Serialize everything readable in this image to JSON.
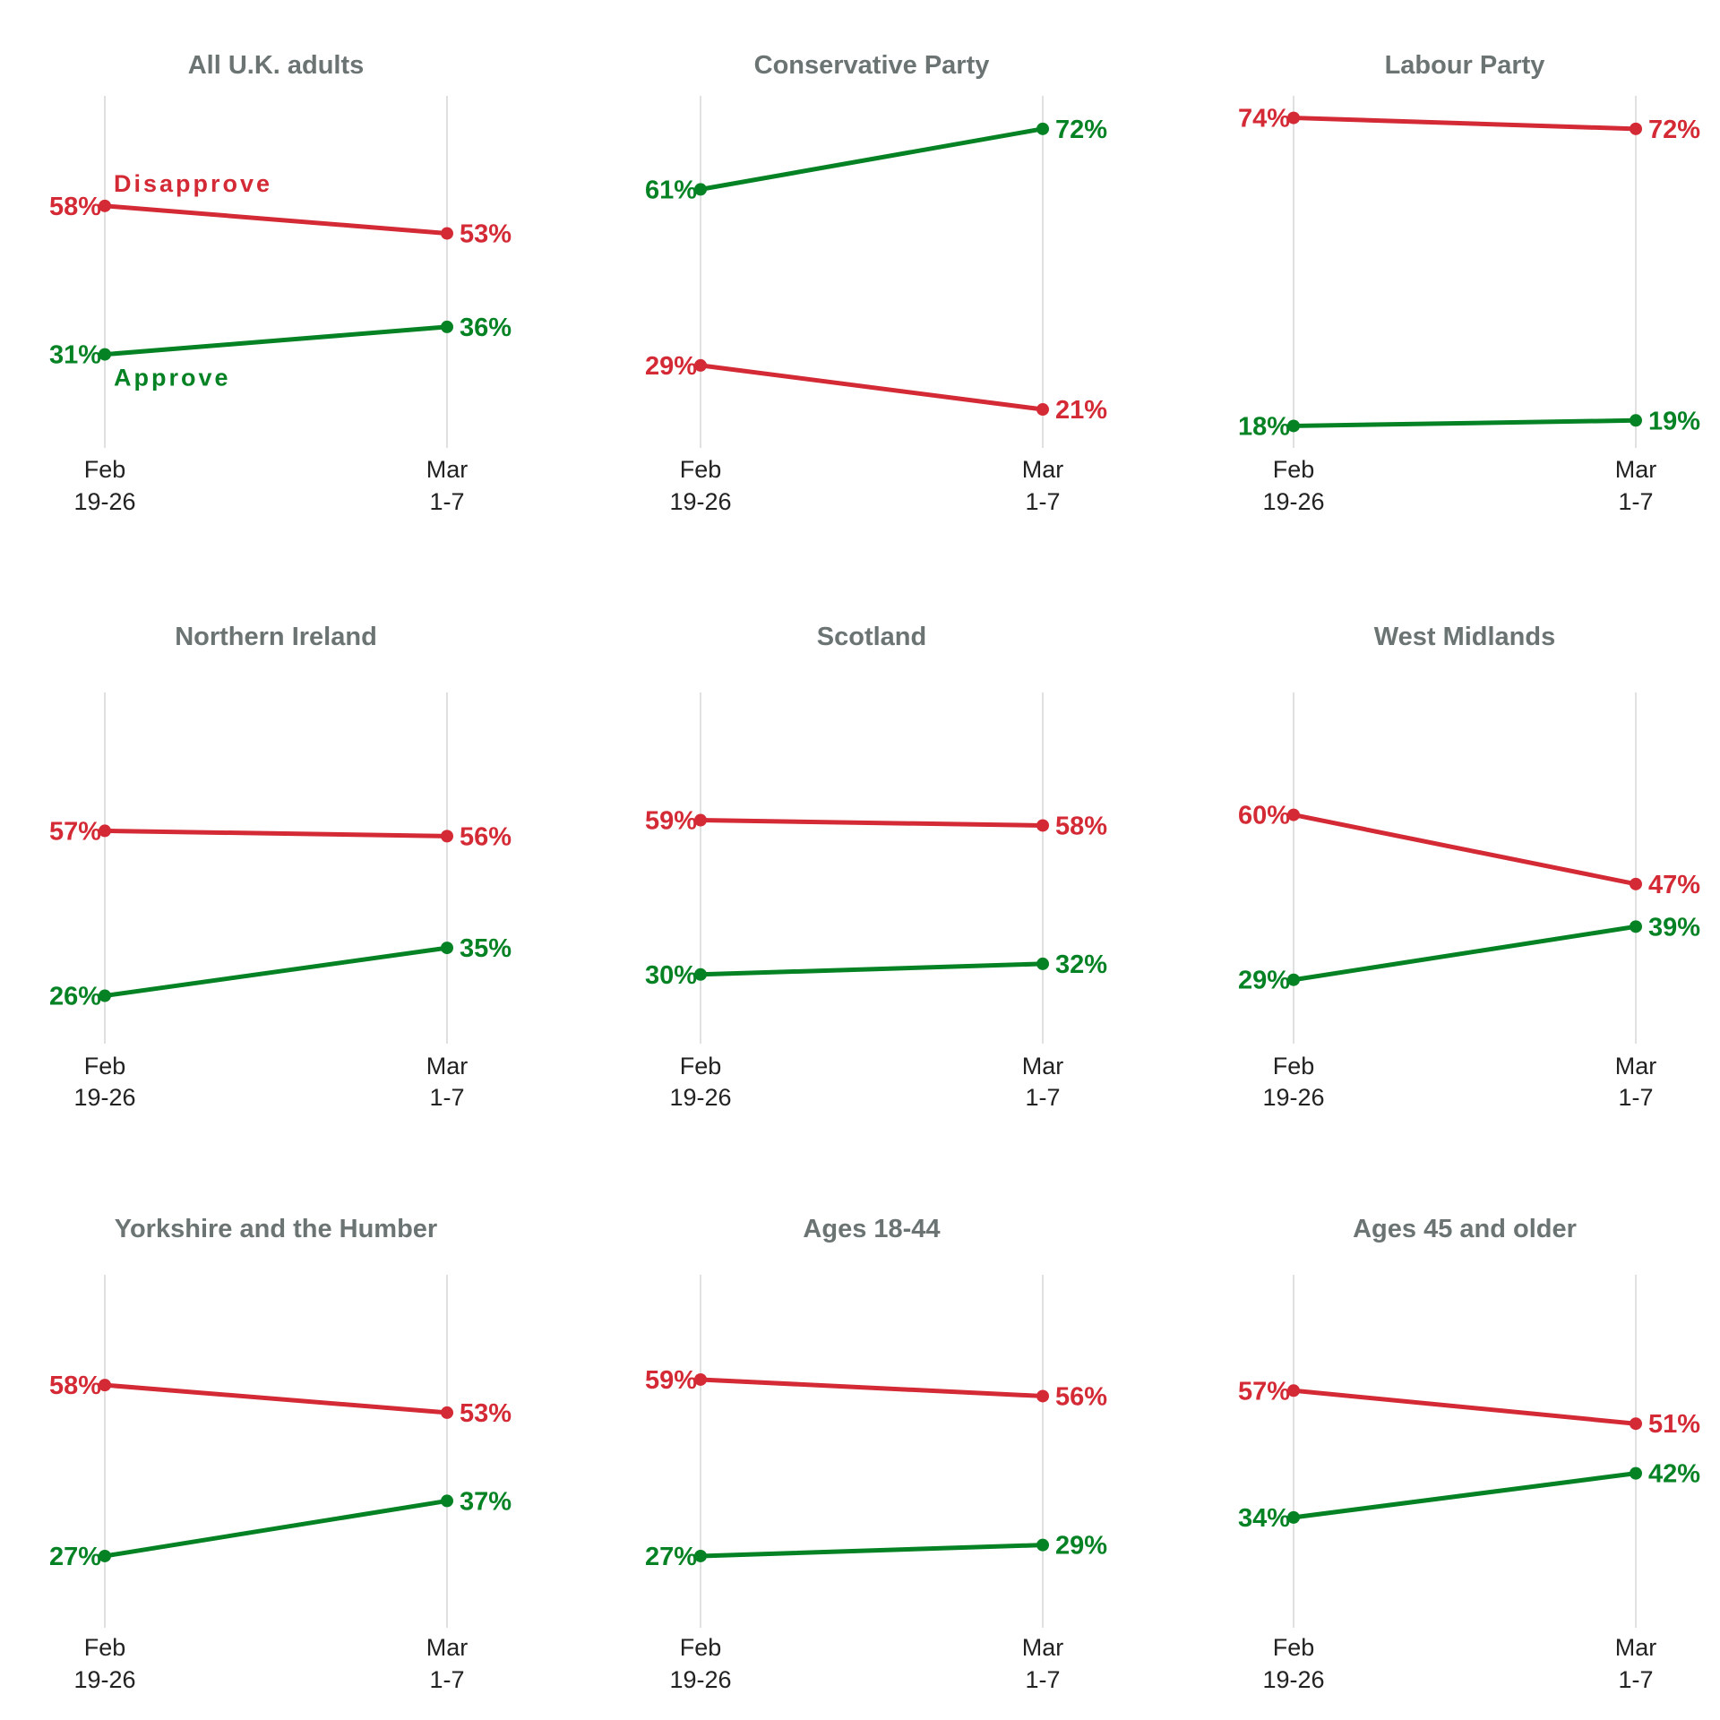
{
  "colors": {
    "disapprove": "#d42a35",
    "approve": "#058224",
    "title": "#6b7373",
    "grid": "#d6d6d6"
  },
  "series_labels": {
    "disapprove": "Disapprove",
    "approve": "Approve"
  },
  "chart_data": [
    {
      "type": "line",
      "title": "All U.K. adults",
      "x": [
        "Feb 19-26",
        "Mar 1-7"
      ],
      "x_ticks": [
        [
          "Feb",
          "19-26"
        ],
        [
          "Mar",
          "1-7"
        ]
      ],
      "series": [
        {
          "key": "disapprove",
          "name": "Disapprove",
          "values": [
            58,
            53
          ],
          "labels": [
            "58%",
            "53%"
          ]
        },
        {
          "key": "approve",
          "name": "Approve",
          "values": [
            31,
            36
          ],
          "labels": [
            "31%",
            "36%"
          ]
        }
      ],
      "ylim": [
        14,
        78
      ]
    },
    {
      "type": "line",
      "title": "Conservative Party",
      "x": [
        "Feb 19-26",
        "Mar 1-7"
      ],
      "x_ticks": [
        [
          "Feb",
          "19-26"
        ],
        [
          "Mar",
          "1-7"
        ]
      ],
      "series": [
        {
          "key": "disapprove",
          "name": "Disapprove",
          "values": [
            29,
            21
          ],
          "labels": [
            "29%",
            "21%"
          ]
        },
        {
          "key": "approve",
          "name": "Approve",
          "values": [
            61,
            72
          ],
          "labels": [
            "61%",
            "72%"
          ]
        }
      ],
      "ylim": [
        14,
        78
      ]
    },
    {
      "type": "line",
      "title": "Labour Party",
      "x": [
        "Feb 19-26",
        "Mar 1-7"
      ],
      "x_ticks": [
        [
          "Feb",
          "19-26"
        ],
        [
          "Mar",
          "1-7"
        ]
      ],
      "series": [
        {
          "key": "disapprove",
          "name": "Disapprove",
          "values": [
            74,
            72
          ],
          "labels": [
            "74%",
            "72%"
          ]
        },
        {
          "key": "approve",
          "name": "Approve",
          "values": [
            18,
            19
          ],
          "labels": [
            "18%",
            "19%"
          ]
        }
      ],
      "ylim": [
        14,
        78
      ]
    },
    {
      "type": "line",
      "title": "Northern Ireland",
      "x": [
        "Feb 19-26",
        "Mar 1-7"
      ],
      "x_ticks": [
        [
          "Feb",
          "19-26"
        ],
        [
          "Mar",
          "1-7"
        ]
      ],
      "series": [
        {
          "key": "disapprove",
          "name": "Disapprove",
          "values": [
            57,
            56
          ],
          "labels": [
            "57%",
            "56%"
          ]
        },
        {
          "key": "approve",
          "name": "Approve",
          "values": [
            26,
            35
          ],
          "labels": [
            "26%",
            "35%"
          ]
        }
      ],
      "ylim": [
        17,
        83
      ]
    },
    {
      "type": "line",
      "title": "Scotland",
      "x": [
        "Feb 19-26",
        "Mar 1-7"
      ],
      "x_ticks": [
        [
          "Feb",
          "19-26"
        ],
        [
          "Mar",
          "1-7"
        ]
      ],
      "series": [
        {
          "key": "disapprove",
          "name": "Disapprove",
          "values": [
            59,
            58
          ],
          "labels": [
            "59%",
            "58%"
          ]
        },
        {
          "key": "approve",
          "name": "Approve",
          "values": [
            30,
            32
          ],
          "labels": [
            "30%",
            "32%"
          ]
        }
      ],
      "ylim": [
        17,
        83
      ]
    },
    {
      "type": "line",
      "title": "West Midlands",
      "x": [
        "Feb 19-26",
        "Mar 1-7"
      ],
      "x_ticks": [
        [
          "Feb",
          "19-26"
        ],
        [
          "Mar",
          "1-7"
        ]
      ],
      "series": [
        {
          "key": "disapprove",
          "name": "Disapprove",
          "values": [
            60,
            47
          ],
          "labels": [
            "60%",
            "47%"
          ]
        },
        {
          "key": "approve",
          "name": "Approve",
          "values": [
            29,
            39
          ],
          "labels": [
            "29%",
            "39%"
          ]
        }
      ],
      "ylim": [
        17,
        83
      ]
    },
    {
      "type": "line",
      "title": "Yorkshire and the Humber",
      "x": [
        "Feb 19-26",
        "Mar 1-7"
      ],
      "x_ticks": [
        [
          "Feb",
          "19-26"
        ],
        [
          "Mar",
          "1-7"
        ]
      ],
      "series": [
        {
          "key": "disapprove",
          "name": "Disapprove",
          "values": [
            58,
            53
          ],
          "labels": [
            "58%",
            "53%"
          ]
        },
        {
          "key": "approve",
          "name": "Approve",
          "values": [
            27,
            37
          ],
          "labels": [
            "27%",
            "37%"
          ]
        }
      ],
      "ylim": [
        14,
        78
      ]
    },
    {
      "type": "line",
      "title": "Ages 18-44",
      "x": [
        "Feb 19-26",
        "Mar 1-7"
      ],
      "x_ticks": [
        [
          "Feb",
          "19-26"
        ],
        [
          "Mar",
          "1-7"
        ]
      ],
      "series": [
        {
          "key": "disapprove",
          "name": "Disapprove",
          "values": [
            59,
            56
          ],
          "labels": [
            "59%",
            "56%"
          ]
        },
        {
          "key": "approve",
          "name": "Approve",
          "values": [
            27,
            29
          ],
          "labels": [
            "27%",
            "29%"
          ]
        }
      ],
      "ylim": [
        14,
        78
      ]
    },
    {
      "type": "line",
      "title": "Ages 45 and older",
      "x": [
        "Feb 19-26",
        "Mar 1-7"
      ],
      "x_ticks": [
        [
          "Feb",
          "19-26"
        ],
        [
          "Mar",
          "1-7"
        ]
      ],
      "series": [
        {
          "key": "disapprove",
          "name": "Disapprove",
          "values": [
            57,
            51
          ],
          "labels": [
            "57%",
            "51%"
          ]
        },
        {
          "key": "approve",
          "name": "Approve",
          "values": [
            34,
            42
          ],
          "labels": [
            "34%",
            "42%"
          ]
        }
      ],
      "ylim": [
        14,
        78
      ]
    }
  ]
}
